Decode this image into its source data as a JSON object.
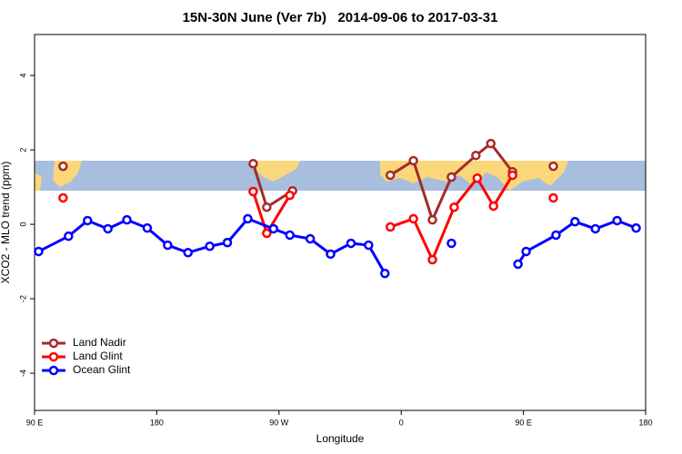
{
  "chart_data": {
    "type": "line",
    "title": "15N-30N June (Ver 7b)   2014-09-06 to 2017-03-31",
    "xlabel": "Longitude",
    "ylabel": "XCO2 - MLO trend (ppm)",
    "xlim": [
      90,
      540
    ],
    "ylim": [
      -5,
      5.1
    ],
    "xticks": [
      {
        "value": 90,
        "label": "90 E"
      },
      {
        "value": 180,
        "label": "180"
      },
      {
        "value": 270,
        "label": "90 W"
      },
      {
        "value": 360,
        "label": "0"
      },
      {
        "value": 450,
        "label": "90 E"
      },
      {
        "value": 540,
        "label": "180"
      }
    ],
    "yticks": [
      -4,
      -2,
      0,
      2,
      4
    ],
    "legend": "bottom-left",
    "series": [
      {
        "name": "Land Nadir",
        "color": "#a52a2a",
        "x": [
          111,
          null,
          251,
          261,
          280,
          null,
          352,
          369,
          383,
          397,
          415,
          426,
          442,
          null,
          472
        ],
        "values": [
          1.56,
          null,
          1.63,
          0.46,
          0.9,
          null,
          1.32,
          1.71,
          0.12,
          1.27,
          1.85,
          2.17,
          1.41,
          null,
          1.56
        ]
      },
      {
        "name": "Land Glint",
        "color": "#ff0000",
        "x": [
          111,
          null,
          251,
          261,
          278,
          null,
          352,
          369,
          383,
          399,
          416,
          428,
          442,
          null,
          472
        ],
        "values": [
          0.71,
          null,
          0.88,
          -0.24,
          0.78,
          null,
          -0.07,
          0.15,
          -0.95,
          0.46,
          1.24,
          0.49,
          1.32,
          null,
          0.71
        ]
      },
      {
        "name": "Ocean Glint",
        "color": "#0000ff",
        "x": [
          93,
          115,
          129,
          144,
          158,
          173,
          188,
          203,
          219,
          232,
          247,
          266,
          278,
          293,
          308,
          323,
          336,
          348,
          null,
          397,
          null,
          446,
          452,
          474,
          488,
          503,
          519,
          533
        ],
        "values": [
          -0.73,
          -0.32,
          0.1,
          -0.12,
          0.12,
          -0.1,
          -0.56,
          -0.76,
          -0.59,
          -0.49,
          0.15,
          -0.12,
          -0.29,
          -0.39,
          -0.8,
          -0.51,
          -0.56,
          -1.32,
          null,
          -0.51,
          null,
          -1.07,
          -0.73,
          -0.29,
          0.07,
          -0.12,
          0.1,
          -0.1
        ]
      }
    ]
  }
}
